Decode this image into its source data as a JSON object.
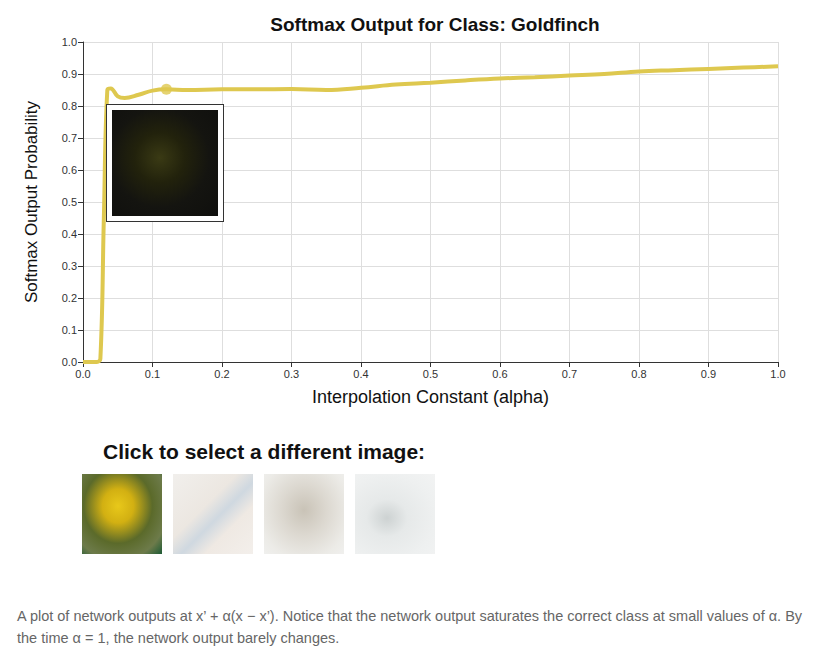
{
  "chart_data": {
    "type": "line",
    "title": "Softmax Output for Class: Goldfinch",
    "x_label": "Interpolation Constant (alpha)",
    "y_label": "Softmax Output Probability",
    "x": [
      0,
      0.01,
      0.02,
      0.025,
      0.03,
      0.035,
      0.04,
      0.05,
      0.06,
      0.08,
      0.1,
      0.12,
      0.15,
      0.2,
      0.25,
      0.3,
      0.35,
      0.4,
      0.45,
      0.5,
      0.55,
      0.6,
      0.65,
      0.7,
      0.75,
      0.8,
      0.85,
      0.9,
      0.95,
      1.0
    ],
    "values": [
      0,
      0.0,
      0.0,
      0.01,
      0.45,
      0.85,
      0.855,
      0.83,
      0.825,
      0.835,
      0.848,
      0.852,
      0.85,
      0.852,
      0.852,
      0.853,
      0.85,
      0.857,
      0.867,
      0.873,
      0.88,
      0.886,
      0.89,
      0.895,
      0.9,
      0.908,
      0.912,
      0.916,
      0.92,
      0.924
    ],
    "highlight": {
      "x": 0.12,
      "y": 0.852
    },
    "color": "#dec84f",
    "xlim": [
      0,
      1
    ],
    "xticks": [
      {
        "value": 0,
        "label": "0.0"
      },
      0.1,
      0.2,
      0.3,
      0.4,
      0.5,
      0.6,
      0.7,
      0.8,
      0.9,
      {
        "value": 1,
        "label": "1.0"
      }
    ],
    "ylim": [
      0,
      1
    ],
    "yticks": [
      {
        "value": 0,
        "label": "0.0"
      },
      0.1,
      0.2,
      0.3,
      0.4,
      0.5,
      0.6,
      0.7,
      0.8,
      0.9,
      {
        "value": 1,
        "label": "1.0"
      }
    ],
    "grid": true,
    "prompt": "Click to select a different image:",
    "caption": "A plot of network outputs at x’ + α(x − x’). Notice that the network output saturates the correct class at small values of α. By the time α = 1, the network output barely changes."
  }
}
